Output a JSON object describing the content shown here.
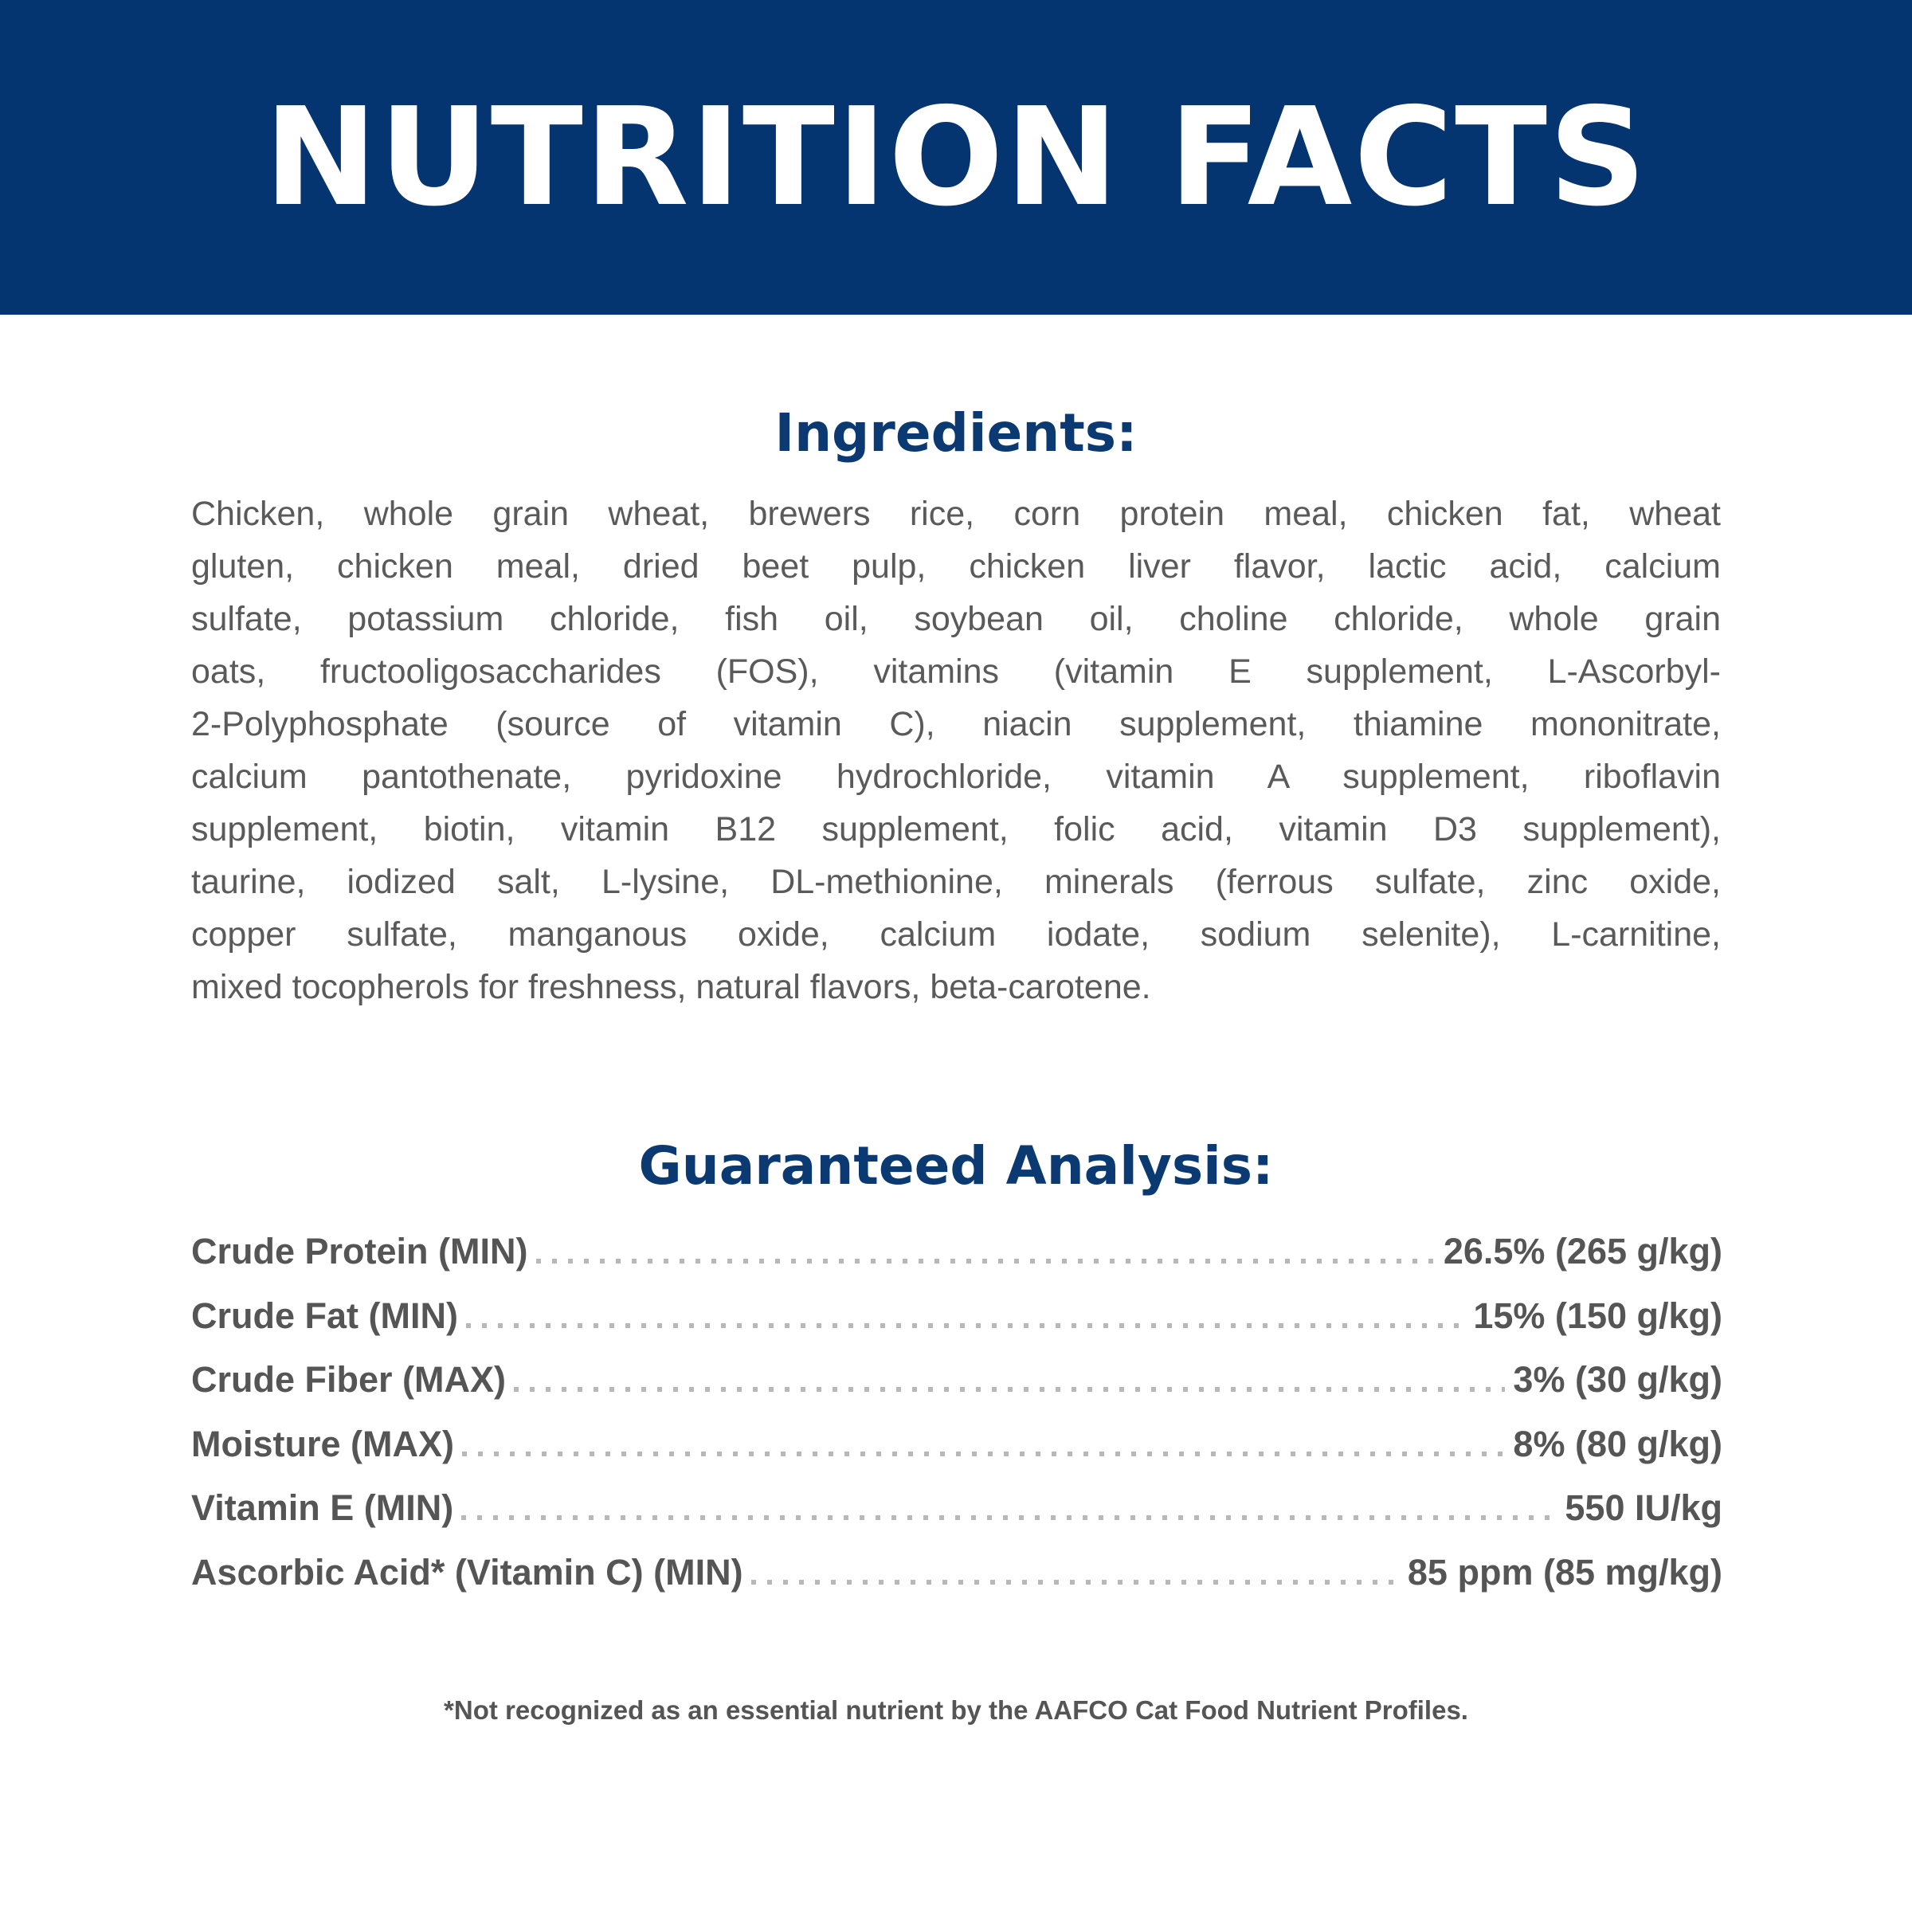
{
  "header": {
    "title": "NUTRITION FACTS",
    "background_color": "#043570"
  },
  "ingredients": {
    "heading": "Ingredients:",
    "lines": [
      "Chicken, whole grain wheat, brewers rice, corn protein meal, chicken fat, wheat",
      "gluten, chicken meal, dried beet pulp, chicken liver flavor, lactic acid, calcium",
      "sulfate, potassium chloride, fish oil, soybean oil, choline chloride, whole grain",
      "oats, fructooligosaccharides (FOS), vitamins (vitamin E supplement, L-Ascorbyl-",
      "2-Polyphosphate (source of vitamin C), niacin supplement, thiamine mononitrate,",
      "calcium pantothenate, pyridoxine hydrochloride, vitamin A supplement, riboflavin",
      "supplement, biotin, vitamin B12 supplement, folic acid, vitamin D3 supplement),",
      "taurine, iodized salt, L-lysine, DL-methionine, minerals (ferrous sulfate, zinc oxide,",
      "copper sulfate, manganous oxide, calcium iodate, sodium selenite), L-carnitine,",
      "mixed tocopherols for freshness, natural flavors, beta-carotene."
    ]
  },
  "guaranteed_analysis": {
    "heading": "Guaranteed Analysis:",
    "rows": [
      {
        "label": "Crude Protein (MIN)",
        "value": "26.5% (265 g/kg)"
      },
      {
        "label": "Crude Fat (MIN)",
        "value": "15% (150 g/kg)"
      },
      {
        "label": "Crude Fiber (MAX)",
        "value": "3% (30 g/kg)"
      },
      {
        "label": "Moisture (MAX)",
        "value": "8% (80 g/kg)"
      },
      {
        "label": "Vitamin E (MIN)",
        "value": "550 IU/kg"
      },
      {
        "label": "Ascorbic Acid* (Vitamin C) (MIN)",
        "value": "85 ppm (85 mg/kg)"
      }
    ]
  },
  "footnote": "*Not recognized as an essential nutrient by the AAFCO Cat Food Nutrient Profiles."
}
